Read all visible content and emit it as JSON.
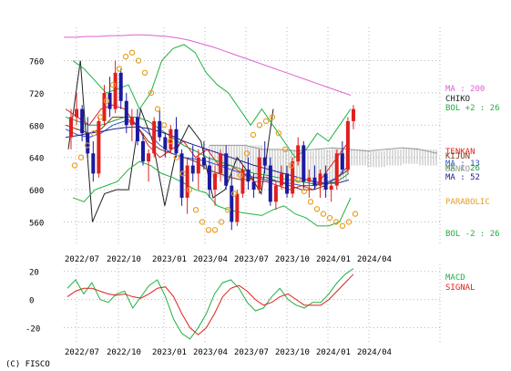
{
  "copyright": "(C) FISCO",
  "colors": {
    "grid": "#b8b8b8",
    "candle_up": "#e02020",
    "candle_down": "#1a1aa0",
    "ma200": "#e060d0",
    "chiko": "#202020",
    "bol2": "#20b040",
    "tenkan": "#e02020",
    "kijun": "#7a3a10",
    "senko": "#999999",
    "ma13": "#3050d0",
    "ma26": "#20a040",
    "ma52": "#202090",
    "parabolic": "#e8a020",
    "macd": "#20b040",
    "signal": "#e02020"
  },
  "chart_data": [
    {
      "type": "candlestick",
      "x_ticks": [
        "2022/07",
        "2022/10",
        "2023/01",
        "2023/04",
        "2023/07",
        "2023/10",
        "2024/01",
        "2024/04"
      ],
      "ylim": [
        530,
        790
      ],
      "y_ticks": [
        560,
        600,
        640,
        680,
        720,
        760
      ],
      "legend": [
        {
          "label": "MA : 200",
          "color": "#e060d0"
        },
        {
          "label": "CHIKO",
          "color": "#202020"
        },
        {
          "label": "BOL +2 : 26",
          "color": "#20b040"
        },
        {
          "label": "TENKAN",
          "color": "#e02020"
        },
        {
          "label": "KIJUN",
          "color": "#7a3a10"
        },
        {
          "label": "MA : 13",
          "color": "#3050d0"
        },
        {
          "label": "MA : 26",
          "color": "#20a040"
        },
        {
          "label": "SENKO",
          "color": "#999999"
        },
        {
          "label": "MA : 52",
          "color": "#202090"
        },
        {
          "label": "PARABOLIC",
          "color": "#e8a020"
        },
        {
          "label": "BOL -2 : 26",
          "color": "#20b040"
        }
      ],
      "series": [
        {
          "name": "MA : 200",
          "values": [
            789,
            789,
            790,
            790,
            791,
            791,
            792,
            792,
            791,
            790,
            788,
            785,
            781,
            777,
            772,
            767,
            762,
            757,
            752,
            747,
            742,
            737,
            732,
            727,
            722,
            717
          ]
        },
        {
          "name": "CHIKO",
          "values": [
            650,
            760,
            560,
            595,
            600,
            600,
            700,
            660,
            580,
            650,
            680,
            660,
            590,
            600,
            640,
            620,
            595,
            700
          ]
        },
        {
          "name": "BOL +2 : 26",
          "values": [
            760,
            750,
            735,
            720,
            725,
            730,
            700,
            720,
            760,
            775,
            780,
            770,
            745,
            730,
            720,
            700,
            680,
            700,
            680,
            660,
            640,
            650,
            670,
            660,
            680,
            700
          ]
        },
        {
          "name": "BOL -2 : 26",
          "values": [
            590,
            585,
            600,
            605,
            610,
            625,
            635,
            630,
            620,
            615,
            608,
            600,
            596,
            580,
            575,
            572,
            570,
            568,
            575,
            580,
            570,
            565,
            555,
            555,
            560,
            590
          ]
        },
        {
          "name": "TENKAN",
          "values": [
            700,
            690,
            680,
            700,
            705,
            700,
            680,
            655,
            640,
            650,
            660,
            640,
            650,
            630,
            630,
            620,
            610,
            610,
            605,
            600,
            605,
            600,
            620,
            640,
            660
          ]
        },
        {
          "name": "KIJUN",
          "values": [
            680,
            675,
            670,
            675,
            690,
            690,
            680,
            660,
            650,
            645,
            640,
            635,
            625,
            620,
            615,
            612,
            615,
            615,
            610,
            605,
            600,
            600,
            605,
            615,
            625
          ]
        },
        {
          "name": "MA : 13",
          "values": [
            675,
            668,
            665,
            670,
            680,
            685,
            682,
            670,
            655,
            645,
            640,
            638,
            635,
            630,
            625,
            620,
            615,
            612,
            610,
            608,
            605,
            605,
            608,
            615,
            630
          ]
        },
        {
          "name": "MA : 26",
          "values": [
            690,
            685,
            680,
            680,
            685,
            690,
            690,
            685,
            675,
            665,
            655,
            648,
            640,
            635,
            630,
            625,
            620,
            618,
            615,
            612,
            610,
            607,
            607,
            610,
            620
          ]
        },
        {
          "name": "MA : 52",
          "values": [
            665,
            667,
            670,
            672,
            675,
            677,
            678,
            676,
            672,
            667,
            660,
            655,
            650,
            645,
            640,
            635,
            630,
            626,
            622,
            618,
            614,
            610,
            608,
            608,
            612
          ]
        },
        {
          "name": "SENKO",
          "values": [
            655,
            655,
            655,
            650,
            650,
            648,
            650,
            652,
            650,
            648,
            650,
            652,
            650,
            645
          ]
        },
        {
          "name": "PARABOLIC",
          "values": [
            630,
            640,
            655,
            670,
            690,
            710,
            730,
            750,
            765,
            770,
            760,
            745,
            720,
            700,
            680,
            660,
            640,
            620,
            600,
            575,
            560,
            550,
            550,
            560,
            575,
            595,
            618,
            645,
            668,
            680,
            685,
            690,
            670,
            650,
            630,
            612,
            598,
            585,
            576,
            570,
            565,
            560,
            555,
            560,
            570
          ]
        }
      ],
      "candles": [
        [
          665,
          700,
          650,
          690
        ],
        [
          690,
          720,
          680,
          700
        ],
        [
          700,
          705,
          660,
          670
        ],
        [
          670,
          690,
          640,
          645
        ],
        [
          645,
          660,
          610,
          620
        ],
        [
          620,
          690,
          615,
          685
        ],
        [
          685,
          730,
          680,
          720
        ],
        [
          720,
          740,
          690,
          700
        ],
        [
          700,
          760,
          695,
          745
        ],
        [
          745,
          750,
          700,
          710
        ],
        [
          710,
          720,
          670,
          680
        ],
        [
          680,
          700,
          660,
          690
        ],
        [
          690,
          700,
          655,
          660
        ],
        [
          660,
          670,
          630,
          635
        ],
        [
          635,
          650,
          610,
          645
        ],
        [
          645,
          690,
          640,
          685
        ],
        [
          685,
          700,
          660,
          665
        ],
        [
          665,
          670,
          640,
          650
        ],
        [
          650,
          680,
          645,
          675
        ],
        [
          675,
          690,
          640,
          645
        ],
        [
          645,
          650,
          580,
          590
        ],
        [
          590,
          640,
          570,
          630
        ],
        [
          630,
          655,
          610,
          620
        ],
        [
          620,
          650,
          600,
          640
        ],
        [
          640,
          660,
          625,
          630
        ],
        [
          630,
          640,
          590,
          600
        ],
        [
          600,
          630,
          580,
          620
        ],
        [
          620,
          650,
          610,
          645
        ],
        [
          645,
          655,
          600,
          605
        ],
        [
          605,
          620,
          550,
          560
        ],
        [
          560,
          600,
          555,
          595
        ],
        [
          595,
          630,
          590,
          625
        ],
        [
          625,
          640,
          600,
          610
        ],
        [
          610,
          620,
          590,
          600
        ],
        [
          600,
          650,
          595,
          640
        ],
        [
          640,
          660,
          620,
          630
        ],
        [
          630,
          640,
          580,
          585
        ],
        [
          585,
          610,
          575,
          605
        ],
        [
          605,
          630,
          600,
          620
        ],
        [
          620,
          630,
          590,
          595
        ],
        [
          595,
          640,
          590,
          635
        ],
        [
          635,
          665,
          630,
          655
        ],
        [
          655,
          660,
          600,
          610
        ],
        [
          610,
          625,
          590,
          615
        ],
        [
          615,
          630,
          600,
          605
        ],
        [
          605,
          625,
          590,
          620
        ],
        [
          620,
          630,
          590,
          600
        ],
        [
          600,
          610,
          585,
          605
        ],
        [
          605,
          650,
          600,
          645
        ],
        [
          645,
          660,
          620,
          625
        ],
        [
          625,
          690,
          620,
          685
        ],
        [
          685,
          705,
          675,
          700
        ]
      ]
    },
    {
      "type": "line",
      "x_ticks": [
        "2022/07",
        "2022/10",
        "2023/01",
        "2023/04",
        "2023/07",
        "2023/10",
        "2024/01",
        "2024/04"
      ],
      "ylim": [
        -30,
        25
      ],
      "y_ticks": [
        -20,
        0,
        20
      ],
      "legend": [
        {
          "label": "MACD",
          "color": "#20b040"
        },
        {
          "label": "SIGNAL",
          "color": "#e02020"
        }
      ],
      "series": [
        {
          "name": "MACD",
          "values": [
            8,
            14,
            4,
            12,
            0,
            -2,
            4,
            6,
            -6,
            2,
            10,
            14,
            2,
            -14,
            -24,
            -28,
            -20,
            -10,
            4,
            12,
            14,
            8,
            -2,
            -8,
            -6,
            2,
            8,
            0,
            -4,
            -6,
            -2,
            -2,
            4,
            12,
            18,
            22
          ]
        },
        {
          "name": "SIGNAL",
          "values": [
            2,
            6,
            8,
            8,
            6,
            4,
            3,
            4,
            2,
            1,
            4,
            8,
            9,
            2,
            -10,
            -20,
            -25,
            -20,
            -10,
            2,
            8,
            10,
            6,
            0,
            -4,
            -2,
            2,
            4,
            0,
            -4,
            -4,
            -4,
            0,
            6,
            12,
            18
          ]
        }
      ]
    }
  ]
}
